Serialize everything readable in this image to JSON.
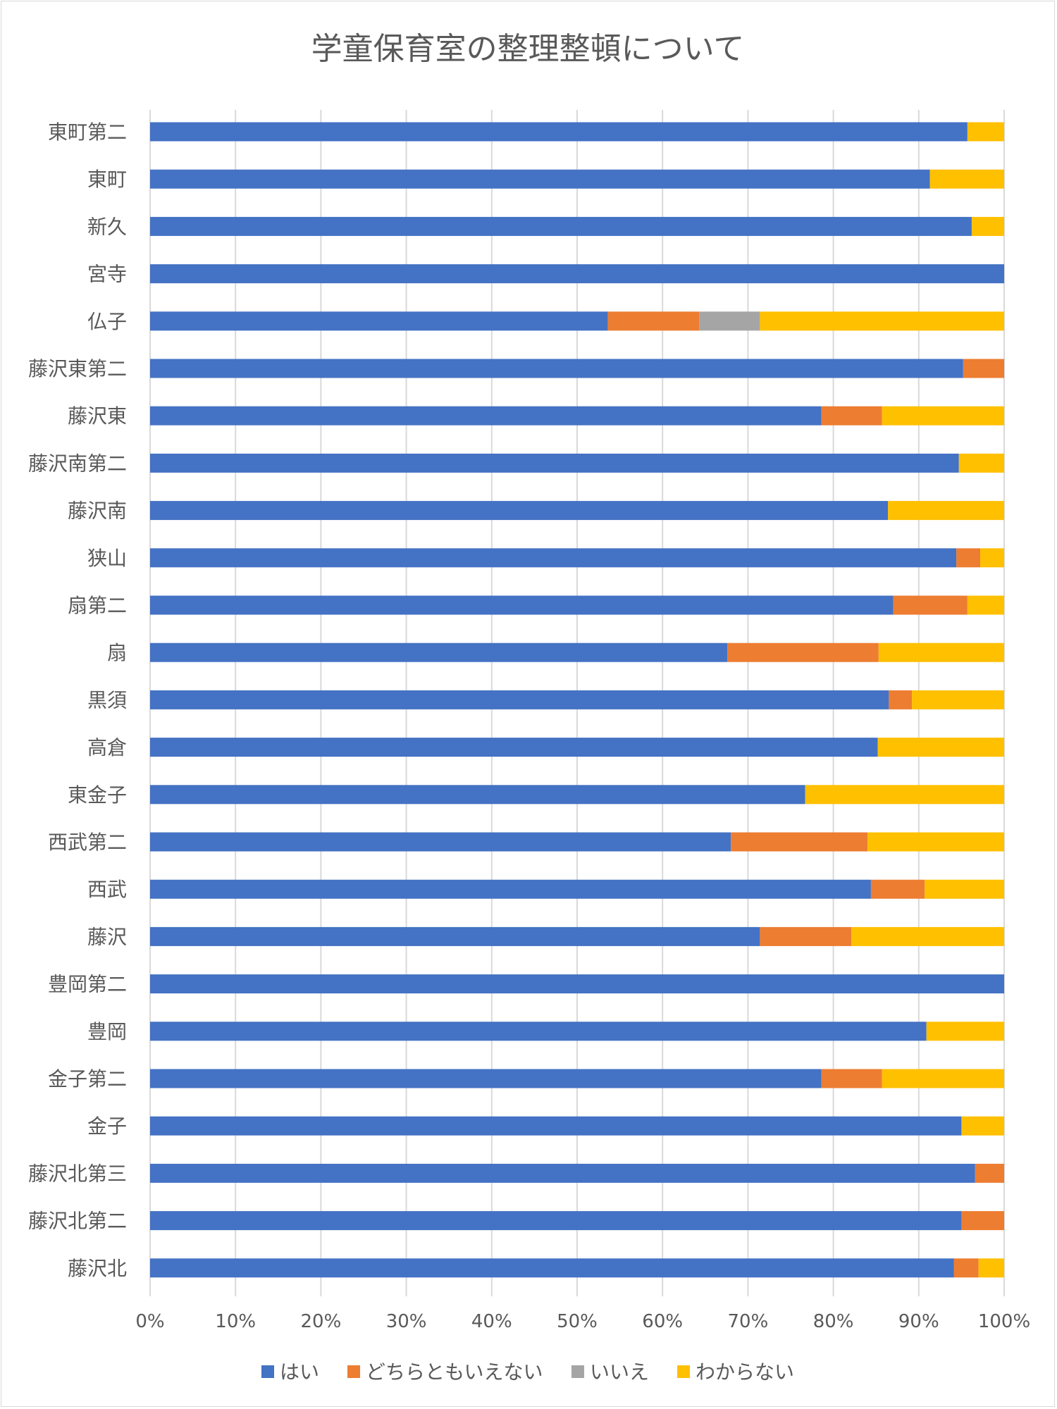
{
  "chart_data": {
    "type": "bar",
    "orientation": "horizontal",
    "stacked": "percent",
    "title": "学童保育室の整理整頓について",
    "categories": [
      "東町第二",
      "東町",
      "新久",
      "宮寺",
      "仏子",
      "藤沢東第二",
      "藤沢東",
      "藤沢南第二",
      "藤沢南",
      "狭山",
      "扇第二",
      "扇",
      "黒須",
      "高倉",
      "東金子",
      "西武第二",
      "西武",
      "藤沢",
      "豊岡第二",
      "豊岡",
      "金子第二",
      "金子",
      "藤沢北第三",
      "藤沢北第二",
      "藤沢北"
    ],
    "series": [
      {
        "name": "はい",
        "color": "#4472C4",
        "values": [
          95.7,
          91.3,
          96.2,
          100,
          53.6,
          95.2,
          78.6,
          94.7,
          86.4,
          94.4,
          87.0,
          67.6,
          86.5,
          85.2,
          76.7,
          68.0,
          84.4,
          71.4,
          100,
          90.9,
          78.6,
          95.0,
          96.6,
          95.0,
          94.1
        ]
      },
      {
        "name": "どちらともいえない",
        "color": "#ED7D31",
        "values": [
          0,
          0,
          0,
          0,
          10.7,
          4.8,
          7.1,
          0,
          0,
          2.8,
          8.7,
          17.7,
          2.7,
          0,
          0,
          16.0,
          6.3,
          10.7,
          0,
          0,
          7.1,
          0,
          3.4,
          5.0,
          2.9
        ]
      },
      {
        "name": "いいえ",
        "color": "#A5A5A5",
        "values": [
          0,
          0,
          0,
          0,
          7.1,
          0,
          0,
          0,
          0,
          0,
          0,
          0,
          0,
          0,
          0,
          0,
          0,
          0,
          0,
          0,
          0,
          0,
          0,
          0,
          0
        ]
      },
      {
        "name": "わからない",
        "color": "#FFC000",
        "values": [
          4.3,
          8.7,
          3.8,
          0,
          28.6,
          0,
          14.3,
          5.3,
          13.6,
          2.8,
          4.3,
          14.7,
          10.8,
          14.8,
          23.3,
          16.0,
          9.3,
          17.9,
          0,
          9.1,
          14.3,
          5.0,
          0,
          0,
          3.0
        ]
      }
    ],
    "xlim": [
      0,
      100
    ],
    "x_ticks": [
      "0%",
      "10%",
      "20%",
      "30%",
      "40%",
      "50%",
      "60%",
      "70%",
      "80%",
      "90%",
      "100%"
    ],
    "grid": true,
    "legend_position": "bottom"
  }
}
